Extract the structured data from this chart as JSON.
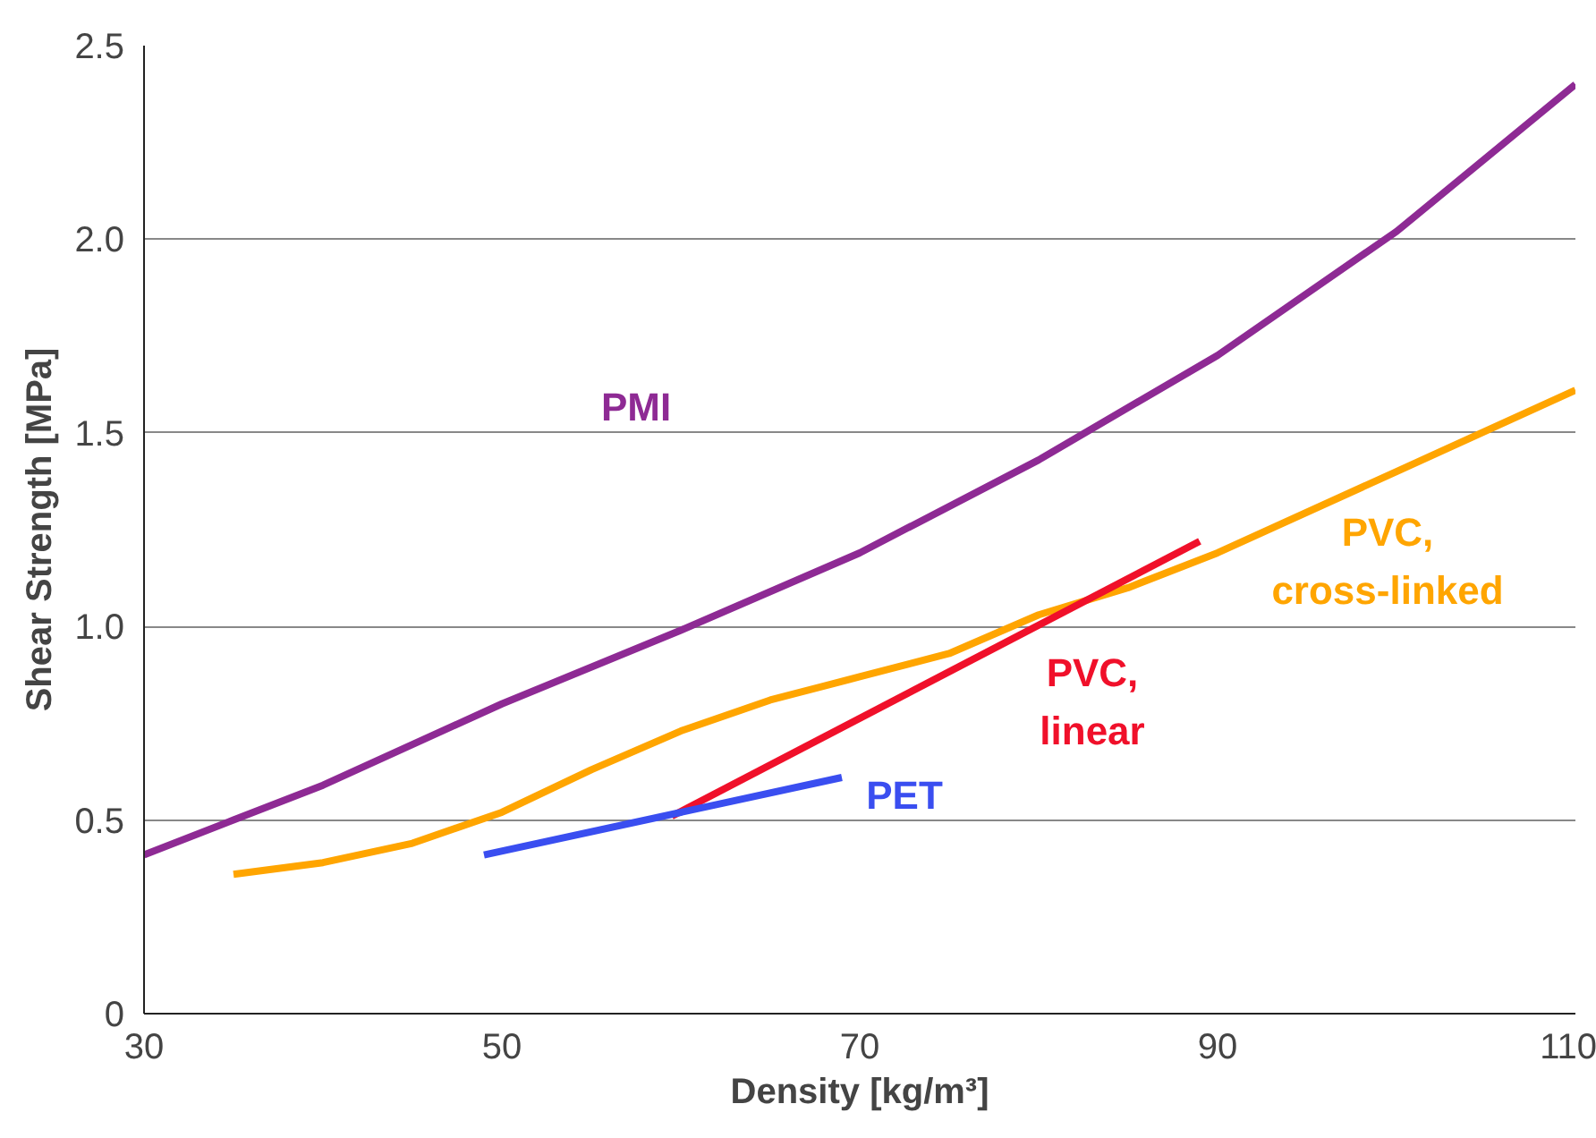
{
  "chart_data": {
    "type": "line",
    "xlabel": "Density [kg/m³]",
    "ylabel": "Shear Strength [MPa]",
    "xlim": [
      30,
      110
    ],
    "xticks": [
      30,
      50,
      70,
      90,
      110
    ],
    "ylim": [
      0,
      2.5
    ],
    "yticks": [
      0,
      0.5,
      {
        "value": 1,
        "label": "1.0"
      },
      1.5,
      {
        "value": 2,
        "label": "2.0"
      },
      2.5
    ],
    "grid": "y",
    "line_style": "solid",
    "marker": "none",
    "series": [
      {
        "name": "PMI",
        "color": "#8e2a94",
        "x": [
          30,
          35,
          40,
          50,
          60,
          70,
          80,
          90,
          100,
          110
        ],
        "values": [
          0.41,
          0.5,
          0.59,
          0.8,
          0.99,
          1.19,
          1.43,
          1.7,
          2.02,
          2.4
        ]
      },
      {
        "name": "PVC, cross-linked",
        "color": "#ffa500",
        "x": [
          35,
          40,
          45,
          50,
          55,
          60,
          65,
          70,
          75,
          80,
          85,
          90,
          100,
          110
        ],
        "values": [
          0.36,
          0.39,
          0.44,
          0.52,
          0.63,
          0.73,
          0.81,
          0.87,
          0.93,
          1.03,
          1.1,
          1.19,
          1.4,
          1.61
        ]
      },
      {
        "name": "PVC, linear",
        "color": "#f0102a",
        "x": [
          59.5,
          89
        ],
        "values": [
          0.51,
          1.22
        ]
      },
      {
        "name": "PET",
        "color": "#3a4ef0",
        "x": [
          49,
          69
        ],
        "values": [
          0.41,
          0.61
        ]
      }
    ]
  }
}
